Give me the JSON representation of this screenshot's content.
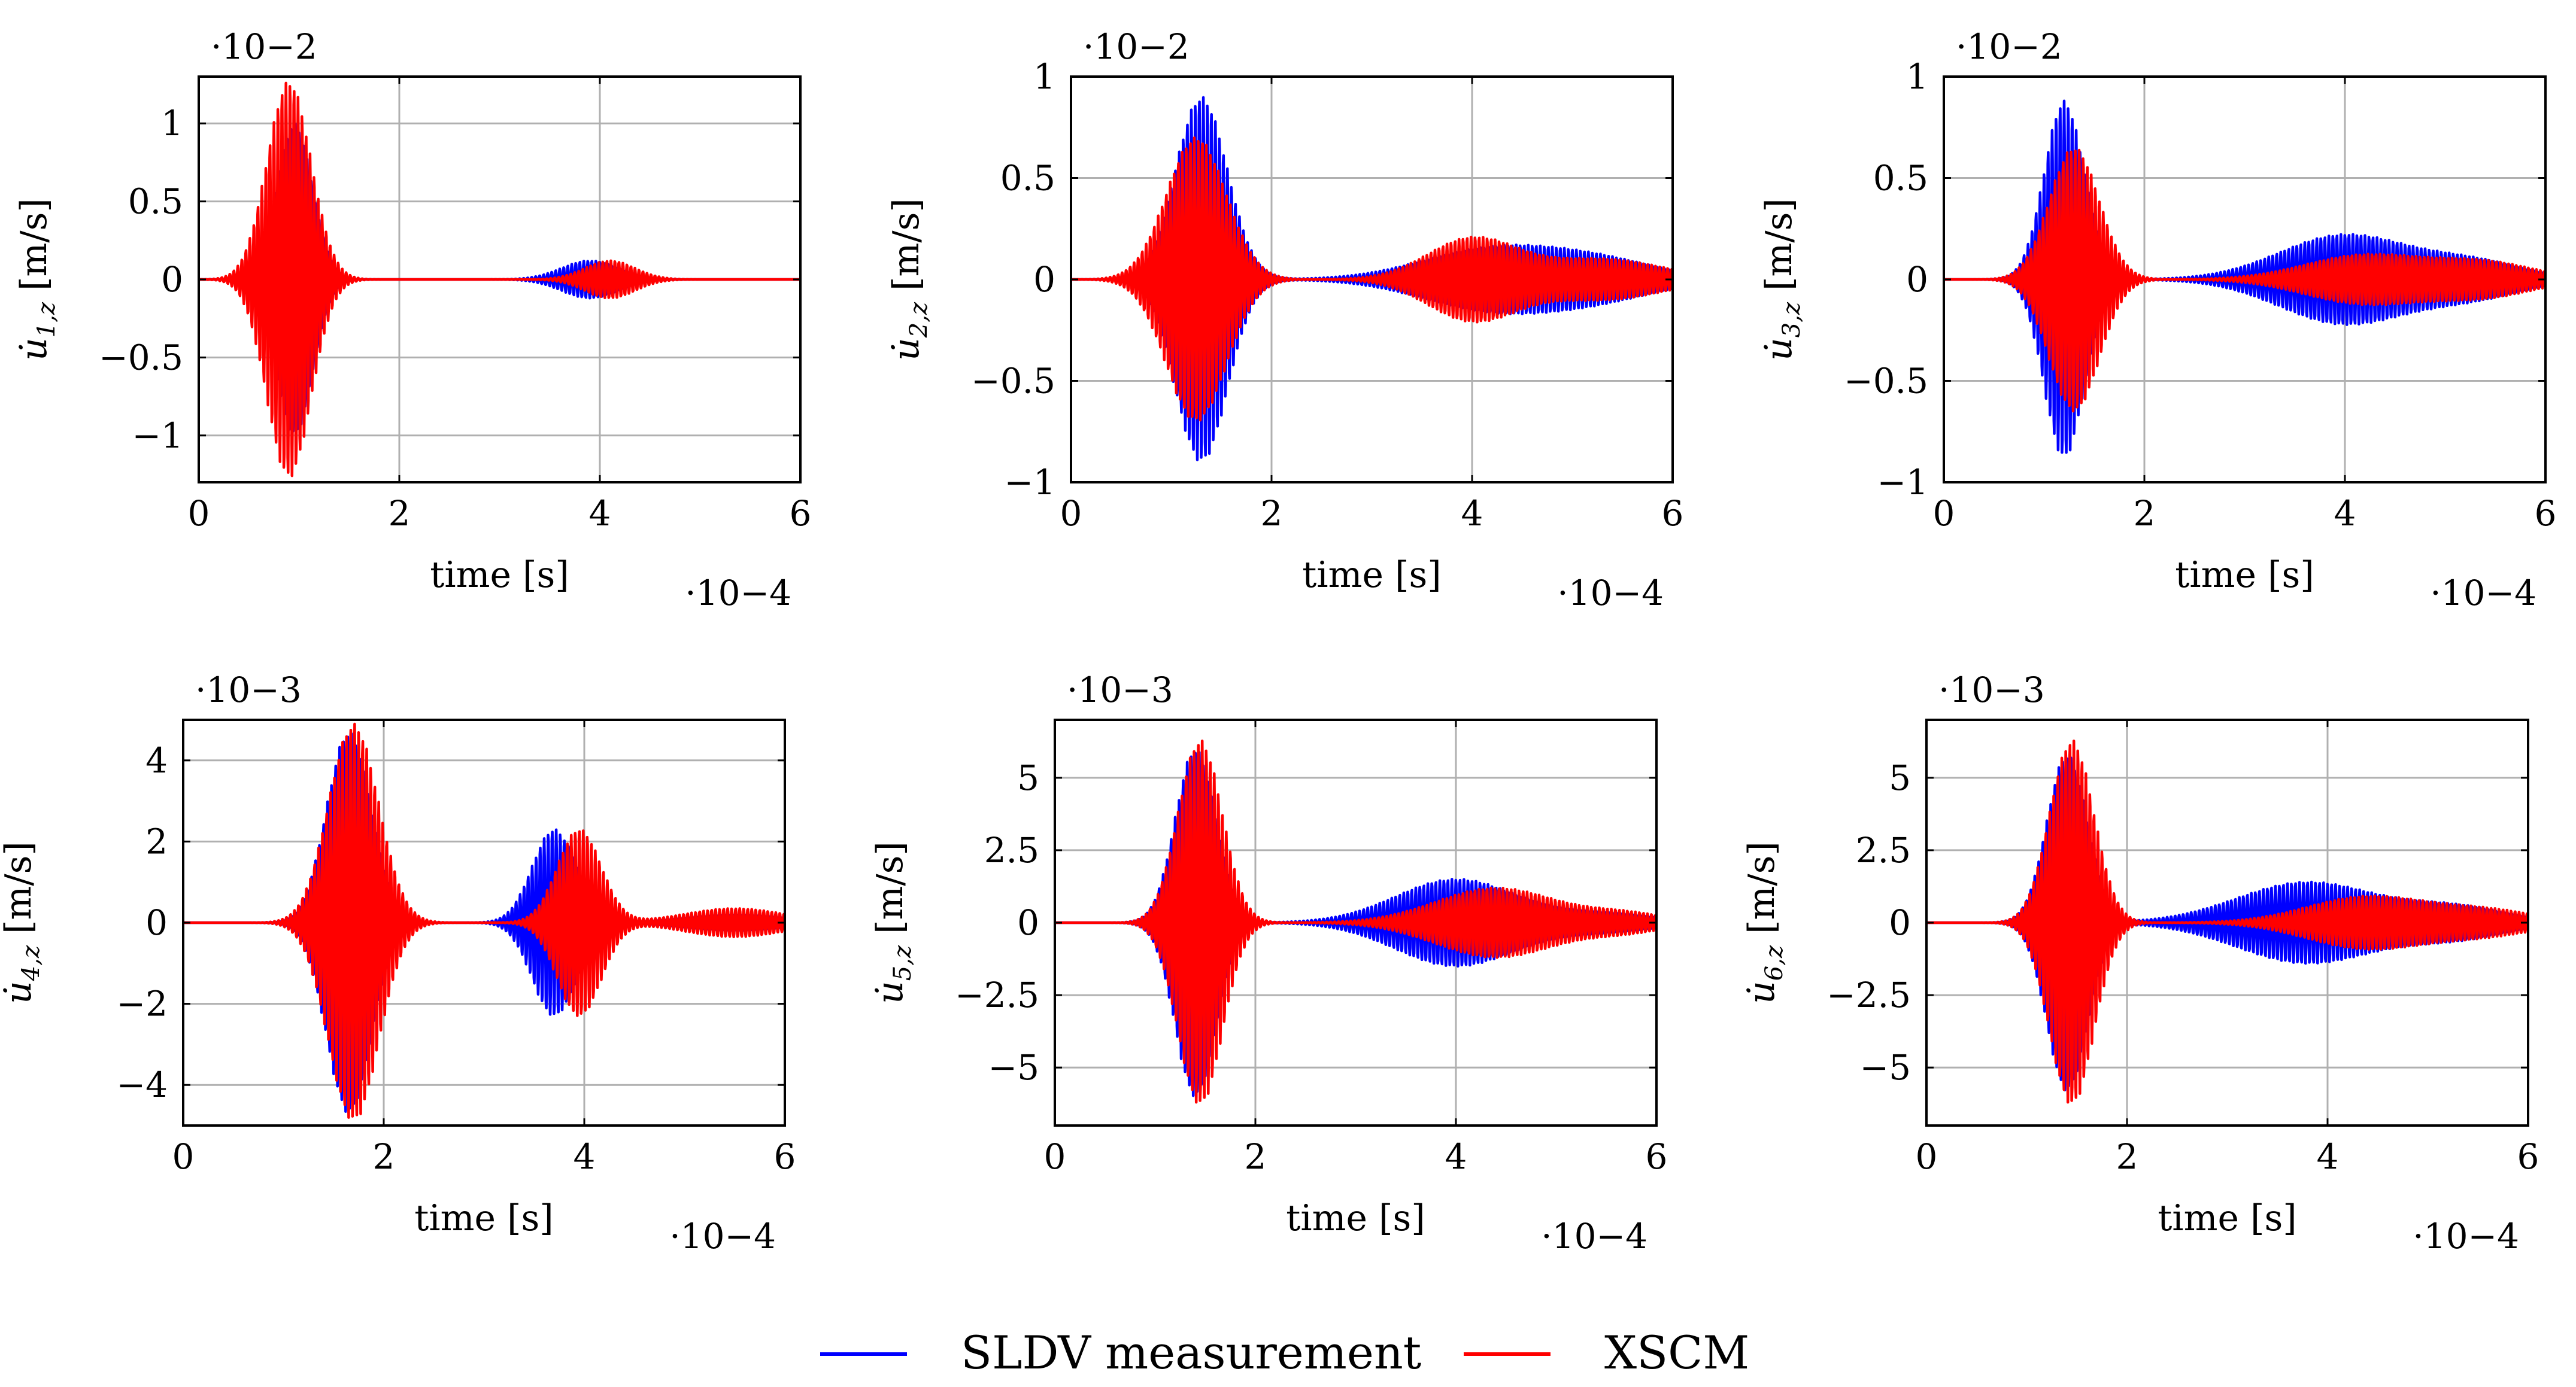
{
  "colors": {
    "sldv": "#0000ff",
    "xscm": "#ff0000"
  },
  "legend": {
    "placement": "bottom-center",
    "items": [
      {
        "label": "SLDV measurement",
        "color": "#0000ff"
      },
      {
        "label": "XSCM",
        "color": "#ff0000"
      }
    ]
  },
  "chart_data": [
    {
      "type": "line",
      "xlabel": "time [s]",
      "x_scale": "·10−4",
      "y_scale": "·10−2",
      "ylabel": {
        "var": "u̇",
        "sub": "1,z",
        "unit": " [m/s]"
      },
      "xlim": [
        0,
        6
      ],
      "ylim": [
        -1.3,
        1.3
      ],
      "xticks": [
        0,
        2,
        4,
        6
      ],
      "yticks": [
        -1,
        -0.5,
        0,
        0.5,
        1
      ],
      "ytick_labels": [
        "−1",
        "−0.5",
        "0",
        "0.5",
        "1"
      ],
      "grid": true,
      "series": [
        {
          "name": "SLDV measurement",
          "color": "#0000ff",
          "freq": 25,
          "packets": [
            [
              0.95,
              0.18,
              1.0
            ],
            [
              3.9,
              0.28,
              0.12
            ]
          ]
        },
        {
          "name": "XSCM",
          "color": "#ff0000",
          "freq": 25,
          "phase": 0.25,
          "packets": [
            [
              0.9,
              0.22,
              1.27
            ],
            [
              4.1,
              0.25,
              0.12
            ]
          ]
        }
      ]
    },
    {
      "type": "line",
      "xlabel": "time [s]",
      "x_scale": "·10−4",
      "y_scale": "·10−2",
      "ylabel": {
        "var": "u̇",
        "sub": "2,z",
        "unit": " [m/s]"
      },
      "xlim": [
        0,
        6
      ],
      "ylim": [
        -1,
        1
      ],
      "xticks": [
        0,
        2,
        4,
        6
      ],
      "yticks": [
        -1,
        -0.5,
        0,
        0.5,
        1
      ],
      "ytick_labels": [
        "−1",
        "−0.5",
        "0",
        "0.5",
        "1"
      ],
      "grid": true,
      "series": [
        {
          "name": "SLDV measurement",
          "color": "#0000ff",
          "freq": 25,
          "packets": [
            [
              1.3,
              0.26,
              0.9
            ],
            [
              4.2,
              0.7,
              0.15
            ],
            [
              5.3,
              0.6,
              0.08
            ]
          ]
        },
        {
          "name": "XSCM",
          "color": "#ff0000",
          "freq": 25,
          "phase": 0.25,
          "packets": [
            [
              1.25,
              0.3,
              0.7
            ],
            [
              4.0,
              0.45,
              0.2
            ],
            [
              5.3,
              0.6,
              0.1
            ]
          ]
        }
      ]
    },
    {
      "type": "line",
      "xlabel": "time [s]",
      "x_scale": "·10−4",
      "y_scale": "·10−2",
      "ylabel": {
        "var": "u̇",
        "sub": "3,z",
        "unit": " [m/s]"
      },
      "xlim": [
        0,
        6
      ],
      "ylim": [
        -1,
        1
      ],
      "xticks": [
        0,
        2,
        4,
        6
      ],
      "yticks": [
        -1,
        -0.5,
        0,
        0.5,
        1
      ],
      "ytick_labels": [
        "−1",
        "−0.5",
        "0",
        "0.5",
        "1"
      ],
      "grid": true,
      "series": [
        {
          "name": "SLDV measurement",
          "color": "#0000ff",
          "freq": 25,
          "packets": [
            [
              1.2,
              0.2,
              0.88
            ],
            [
              4.0,
              0.65,
              0.22
            ],
            [
              5.3,
              0.5,
              0.08
            ]
          ]
        },
        {
          "name": "XSCM",
          "color": "#ff0000",
          "freq": 25,
          "phase": 0.25,
          "packets": [
            [
              1.3,
              0.25,
              0.65
            ],
            [
              4.2,
              0.6,
              0.12
            ],
            [
              5.4,
              0.5,
              0.08
            ]
          ]
        }
      ]
    },
    {
      "type": "line",
      "xlabel": "time [s]",
      "x_scale": "·10−4",
      "y_scale": "·10−3",
      "ylabel": {
        "var": "u̇",
        "sub": "4,z",
        "unit": " [m/s]"
      },
      "xlim": [
        0,
        6
      ],
      "ylim": [
        -5,
        5
      ],
      "xticks": [
        0,
        2,
        4,
        6
      ],
      "yticks": [
        -4,
        -2,
        0,
        2,
        4
      ],
      "ytick_labels": [
        "−4",
        "−2",
        "0",
        "2",
        "4"
      ],
      "grid": true,
      "series": [
        {
          "name": "SLDV measurement",
          "color": "#0000ff",
          "freq": 25,
          "packets": [
            [
              1.65,
              0.22,
              4.7
            ],
            [
              3.7,
              0.22,
              2.3
            ],
            [
              5.5,
              0.5,
              0.2
            ]
          ]
        },
        {
          "name": "XSCM",
          "color": "#ff0000",
          "freq": 25,
          "phase": 0.25,
          "packets": [
            [
              1.7,
              0.25,
              4.9
            ],
            [
              3.95,
              0.22,
              2.3
            ],
            [
              5.5,
              0.5,
              0.35
            ]
          ]
        }
      ]
    },
    {
      "type": "line",
      "xlabel": "time [s]",
      "x_scale": "·10−4",
      "y_scale": "·10−3",
      "ylabel": {
        "var": "u̇",
        "sub": "5,z",
        "unit": " [m/s]"
      },
      "xlim": [
        0,
        6
      ],
      "ylim": [
        -7,
        7
      ],
      "xticks": [
        0,
        2,
        4,
        6
      ],
      "yticks": [
        -5,
        -2.5,
        0,
        2.5,
        5
      ],
      "ytick_labels": [
        "−5",
        "−2.5",
        "0",
        "2.5",
        "5"
      ],
      "grid": true,
      "series": [
        {
          "name": "SLDV measurement",
          "color": "#0000ff",
          "freq": 25,
          "packets": [
            [
              1.4,
              0.2,
              6.0
            ],
            [
              4.0,
              0.6,
              1.5
            ],
            [
              5.5,
              0.5,
              0.3
            ]
          ]
        },
        {
          "name": "XSCM",
          "color": "#ff0000",
          "freq": 25,
          "phase": 0.25,
          "packets": [
            [
              1.45,
              0.22,
              6.3
            ],
            [
              4.4,
              0.6,
              1.2
            ],
            [
              5.7,
              0.4,
              0.3
            ]
          ]
        }
      ]
    },
    {
      "type": "line",
      "xlabel": "time [s]",
      "x_scale": "·10−4",
      "y_scale": "·10−3",
      "ylabel": {
        "var": "u̇",
        "sub": "6,z",
        "unit": " [m/s]"
      },
      "xlim": [
        0,
        6
      ],
      "ylim": [
        -7,
        7
      ],
      "xticks": [
        0,
        2,
        4,
        6
      ],
      "yticks": [
        -5,
        -2.5,
        0,
        2.5,
        5
      ],
      "ytick_labels": [
        "−5",
        "−2.5",
        "0",
        "2.5",
        "5"
      ],
      "grid": true,
      "series": [
        {
          "name": "SLDV measurement",
          "color": "#0000ff",
          "freq": 25,
          "packets": [
            [
              1.4,
              0.2,
              5.8
            ],
            [
              3.8,
              0.7,
              1.4
            ],
            [
              5.3,
              0.5,
              0.5
            ]
          ]
        },
        {
          "name": "XSCM",
          "color": "#ff0000",
          "freq": 25,
          "phase": 0.25,
          "packets": [
            [
              1.45,
              0.22,
              6.3
            ],
            [
              4.4,
              0.6,
              0.9
            ],
            [
              5.6,
              0.5,
              0.4
            ]
          ]
        }
      ]
    }
  ]
}
